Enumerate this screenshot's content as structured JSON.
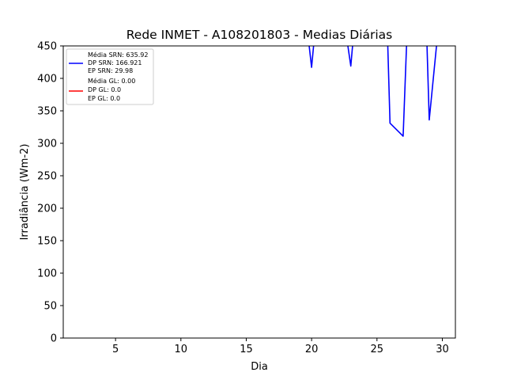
{
  "chart_data": {
    "type": "line",
    "title": "Rede INMET - A108201803 - Medias Diárias",
    "xlabel": "Dia",
    "ylabel": "Irradiância (Wm-2)",
    "xlim": [
      1,
      31
    ],
    "ylim": [
      0,
      450
    ],
    "xticks": [
      5,
      10,
      15,
      20,
      25,
      30
    ],
    "yticks": [
      0,
      50,
      100,
      150,
      200,
      250,
      300,
      350,
      400,
      450
    ],
    "grid": false,
    "legend_position": "top-left",
    "series": [
      {
        "key": "srn",
        "color": "#0000ff",
        "x": [
          19.7,
          20,
          20.2,
          22.7,
          23,
          23.2,
          25.8,
          26,
          27,
          27.3,
          28.8,
          29,
          29.6
        ],
        "y": [
          470,
          417,
          460,
          460,
          419,
          465,
          470,
          331,
          311,
          470,
          470,
          336,
          460
        ]
      },
      {
        "key": "gl",
        "color": "#ff0000",
        "x": [],
        "y": []
      }
    ],
    "legend": [
      {
        "series": "srn",
        "color": "#0000ff",
        "lines": [
          "Média SRN: 635.92",
          "DP SRN: 166.921",
          "EP SRN: 29.98"
        ]
      },
      {
        "series": "gl",
        "color": "#ff0000",
        "lines": [
          "Média GL:  0.00",
          "DP GL: 0.0",
          "EP GL: 0.0"
        ]
      }
    ]
  }
}
